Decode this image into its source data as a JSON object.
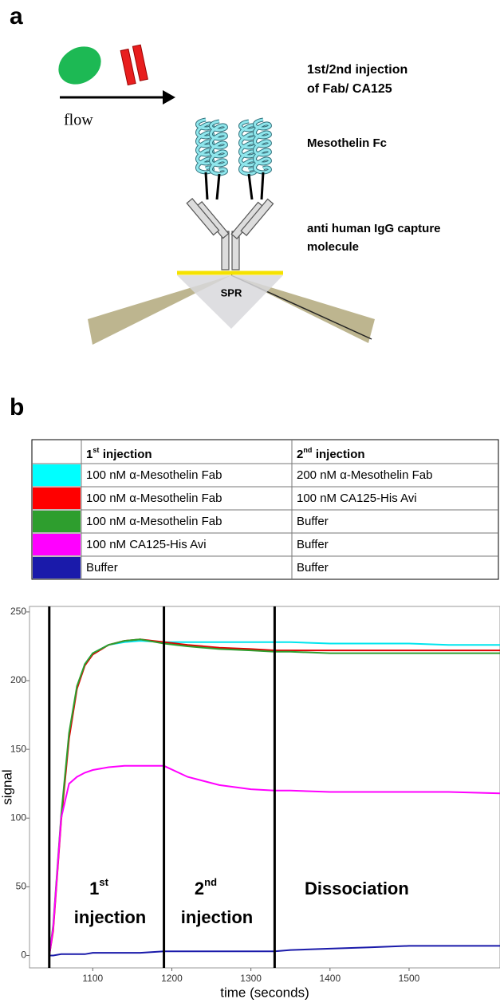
{
  "panel_a": {
    "label": "a",
    "flow": "flow",
    "injection": [
      "1st/2nd injection",
      "of Fab/ CA125"
    ],
    "ligand": "Mesothelin Fc",
    "capture": [
      "anti human IgG capture",
      "molecule"
    ],
    "prism": "SPR"
  },
  "panel_b": {
    "label": "b"
  },
  "table": {
    "header": [
      {
        "number": "1",
        "sup": "st",
        "text": "injection"
      },
      {
        "number": "2",
        "sup": "nd",
        "text": "injection"
      }
    ],
    "rows": [
      {
        "color": "#00ffff",
        "first": "100 nM α-Mesothelin Fab",
        "second": "200 nM α-Mesothelin Fab"
      },
      {
        "color": "#ff0000",
        "first": "100 nM α-Mesothelin Fab",
        "second": "100 nM CA125-His Avi"
      },
      {
        "color": "#2e9e2e",
        "first": "100 nM α-Mesothelin Fab",
        "second": "Buffer"
      },
      {
        "color": "#ff00ff",
        "first": "100 nM CA125-His Avi",
        "second": "Buffer"
      },
      {
        "color": "#1a1aaa",
        "first": "Buffer",
        "second": "Buffer"
      }
    ]
  },
  "chart_data": {
    "type": "line",
    "x_label": "time (seconds)",
    "y_label": "signal",
    "x": [
      1045,
      1050,
      1060,
      1070,
      1080,
      1090,
      1100,
      1120,
      1140,
      1160,
      1190,
      1220,
      1260,
      1300,
      1330,
      1350,
      1400,
      1450,
      1500,
      1550,
      1615
    ],
    "series": [
      {
        "color": "#00e5ee",
        "values": [
          0,
          20,
          100,
          160,
          195,
          212,
          220,
          226,
          228,
          229,
          228,
          228,
          228,
          228,
          228,
          228,
          227,
          227,
          227,
          226,
          226
        ]
      },
      {
        "color": "#e00000",
        "values": [
          0,
          18,
          98,
          158,
          194,
          211,
          219,
          226,
          229,
          230,
          228,
          226,
          224,
          223,
          222,
          222,
          222,
          222,
          222,
          222,
          222
        ]
      },
      {
        "color": "#2e9e2e",
        "values": [
          0,
          22,
          102,
          162,
          196,
          212,
          220,
          226,
          229,
          230,
          227,
          225,
          223,
          222,
          221,
          221,
          220,
          220,
          220,
          220,
          220
        ]
      },
      {
        "color": "#ff00ff",
        "values": [
          0,
          20,
          100,
          125,
          130,
          133,
          135,
          137,
          138,
          138,
          138,
          130,
          124,
          121,
          120,
          120,
          119,
          119,
          119,
          119,
          118
        ]
      },
      {
        "color": "#1a1aaa",
        "values": [
          0,
          0,
          1,
          1,
          1,
          1,
          2,
          2,
          2,
          2,
          3,
          3,
          3,
          3,
          3,
          4,
          5,
          6,
          7,
          7,
          7
        ]
      }
    ],
    "event_lines": [
      1045,
      1190,
      1330
    ],
    "annotations": [
      {
        "number": "1",
        "sup": "st",
        "text": "injection"
      },
      {
        "number": "2",
        "sup": "nd",
        "text": "injection"
      },
      {
        "text": "Dissociation"
      }
    ],
    "xlim": [
      1020,
      1615
    ],
    "ylim": [
      -9,
      254
    ],
    "xticks": [
      1100,
      1200,
      1300,
      1400,
      1500
    ],
    "yticks": [
      0,
      50,
      100,
      150,
      200,
      250
    ]
  }
}
